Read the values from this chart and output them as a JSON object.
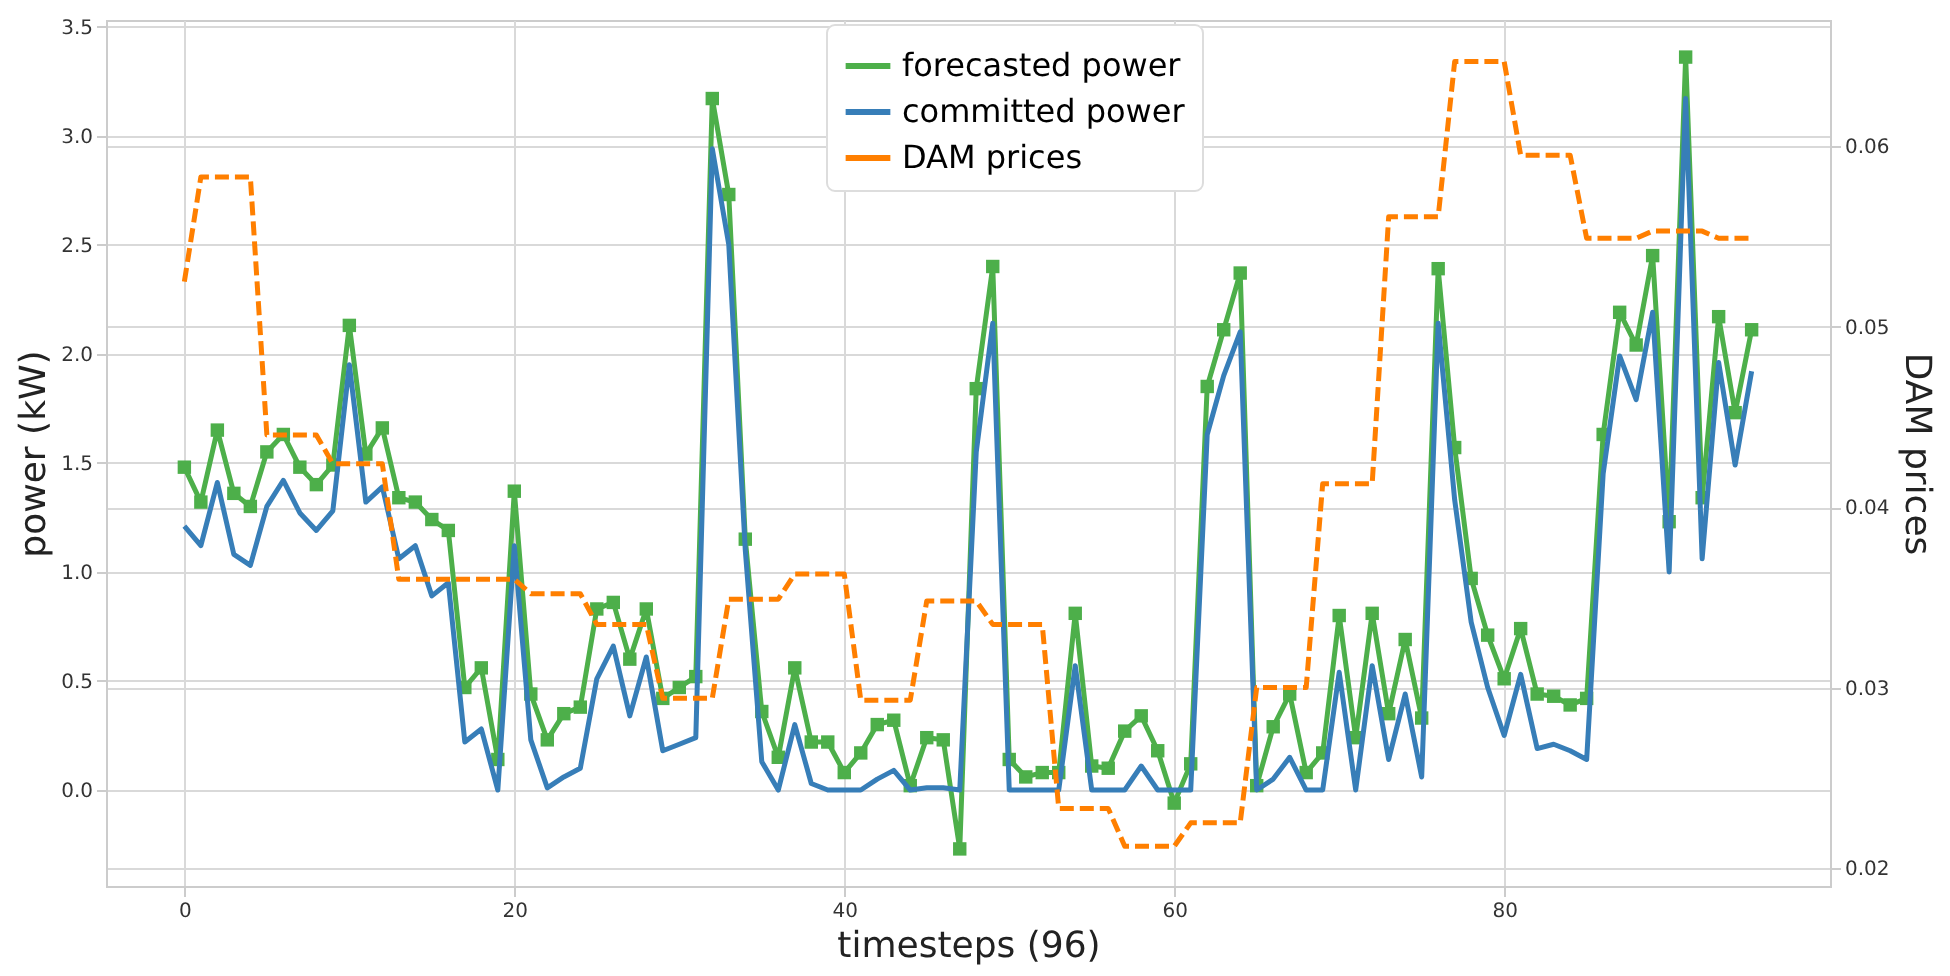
{
  "chart_data": {
    "type": "line",
    "xlabel": "timesteps (96)",
    "ylabel": "power (kW)",
    "y2label": "DAM prices",
    "x": [
      0,
      1,
      2,
      3,
      4,
      5,
      6,
      7,
      8,
      9,
      10,
      11,
      12,
      13,
      14,
      15,
      16,
      17,
      18,
      19,
      20,
      21,
      22,
      23,
      24,
      25,
      26,
      27,
      28,
      29,
      30,
      31,
      32,
      33,
      34,
      35,
      36,
      37,
      38,
      39,
      40,
      41,
      42,
      43,
      44,
      45,
      46,
      47,
      48,
      49,
      50,
      51,
      52,
      53,
      54,
      55,
      56,
      57,
      58,
      59,
      60,
      61,
      62,
      63,
      64,
      65,
      66,
      67,
      68,
      69,
      70,
      71,
      72,
      73,
      74,
      75,
      76,
      77,
      78,
      79,
      80,
      81,
      82,
      83,
      84,
      85,
      86,
      87,
      88,
      89,
      90,
      91,
      92,
      93,
      94,
      95
    ],
    "series": [
      {
        "name": "forecasted power",
        "color": "#4daf4a",
        "marker": "square",
        "line_style": "solid",
        "values": [
          1.48,
          1.32,
          1.65,
          1.36,
          1.3,
          1.55,
          1.63,
          1.48,
          1.4,
          1.49,
          2.13,
          1.54,
          1.66,
          1.34,
          1.32,
          1.24,
          1.19,
          0.47,
          0.56,
          0.14,
          1.37,
          0.44,
          0.23,
          0.35,
          0.38,
          0.83,
          0.86,
          0.6,
          0.83,
          0.42,
          0.47,
          0.52,
          3.17,
          2.73,
          1.15,
          0.36,
          0.15,
          0.56,
          0.22,
          0.22,
          0.08,
          0.17,
          0.3,
          0.32,
          0.02,
          0.24,
          0.23,
          -0.27,
          1.84,
          2.4,
          0.14,
          0.06,
          0.08,
          0.08,
          0.81,
          0.11,
          0.1,
          0.27,
          0.34,
          0.18,
          -0.06,
          0.12,
          1.85,
          2.11,
          2.37,
          0.02,
          0.29,
          0.44,
          0.08,
          0.17,
          0.8,
          0.24,
          0.81,
          0.35,
          0.69,
          0.33,
          2.39,
          1.57,
          0.97,
          0.71,
          0.51,
          0.74,
          0.44,
          0.43,
          0.39,
          0.42,
          1.63,
          2.19,
          2.04,
          2.45,
          1.23,
          3.36,
          1.34,
          2.17,
          1.73,
          2.11
        ]
      },
      {
        "name": "committed power",
        "color": "#377eb8",
        "marker": "none",
        "line_style": "solid",
        "values": [
          1.21,
          1.12,
          1.41,
          1.08,
          1.03,
          1.3,
          1.42,
          1.27,
          1.19,
          1.28,
          1.95,
          1.32,
          1.39,
          1.06,
          1.12,
          0.89,
          0.95,
          0.22,
          0.28,
          0.0,
          1.12,
          0.23,
          0.01,
          0.06,
          0.1,
          0.51,
          0.66,
          0.34,
          0.61,
          0.18,
          0.21,
          0.24,
          2.94,
          2.5,
          1.1,
          0.13,
          0.0,
          0.3,
          0.03,
          0.0,
          0.0,
          0.0,
          0.05,
          0.09,
          0.0,
          0.01,
          0.01,
          0.0,
          1.55,
          2.14,
          0.0,
          0.0,
          0.0,
          0.0,
          0.57,
          0.0,
          0.0,
          0.0,
          0.11,
          0.0,
          0.0,
          0.0,
          1.63,
          1.9,
          2.1,
          0.0,
          0.05,
          0.15,
          0.0,
          0.0,
          0.54,
          0.0,
          0.57,
          0.14,
          0.44,
          0.06,
          2.14,
          1.33,
          0.77,
          0.47,
          0.25,
          0.53,
          0.19,
          0.21,
          0.18,
          0.14,
          1.45,
          1.99,
          1.79,
          2.19,
          1.0,
          3.17,
          1.06,
          1.96,
          1.49,
          1.92
        ]
      },
      {
        "name": "DAM prices",
        "color": "#ff7f00",
        "marker": "none",
        "line_style": "dashed",
        "axis": "y2",
        "values": [
          0.0525,
          0.0583,
          0.0583,
          0.0583,
          0.0583,
          0.044,
          0.044,
          0.044,
          0.044,
          0.0424,
          0.0424,
          0.0424,
          0.0424,
          0.036,
          0.036,
          0.036,
          0.036,
          0.036,
          0.036,
          0.036,
          0.036,
          0.0352,
          0.0352,
          0.0352,
          0.0352,
          0.0335,
          0.0335,
          0.0335,
          0.0335,
          0.0294,
          0.0294,
          0.0294,
          0.0294,
          0.0349,
          0.0349,
          0.0349,
          0.0349,
          0.0363,
          0.0363,
          0.0363,
          0.0363,
          0.0293,
          0.0293,
          0.0293,
          0.0293,
          0.0348,
          0.0348,
          0.0348,
          0.0348,
          0.0335,
          0.0335,
          0.0335,
          0.0335,
          0.0233,
          0.0233,
          0.0233,
          0.0233,
          0.0212,
          0.0212,
          0.0212,
          0.0212,
          0.0225,
          0.0225,
          0.0225,
          0.0225,
          0.03,
          0.03,
          0.03,
          0.03,
          0.0413,
          0.0413,
          0.0413,
          0.0413,
          0.0561,
          0.0561,
          0.0561,
          0.0561,
          0.0647,
          0.0647,
          0.0647,
          0.0647,
          0.0595,
          0.0595,
          0.0595,
          0.0595,
          0.0549,
          0.0549,
          0.0549,
          0.0549,
          0.0553,
          0.0553,
          0.0553,
          0.0553,
          0.0549,
          0.0549,
          0.0549
        ]
      }
    ],
    "xlim": [
      -4.75,
      99.75
    ],
    "xticks": [
      0,
      20,
      40,
      60,
      80
    ],
    "ylim": [
      -0.44,
      3.53
    ],
    "yticks": [
      {
        "value": 0,
        "label": "0.0"
      },
      0.5,
      {
        "value": 1,
        "label": "1.0"
      },
      1.5,
      {
        "value": 2,
        "label": "2.0"
      },
      2.5,
      {
        "value": 3,
        "label": "3.0"
      },
      3.5
    ],
    "y2lim": [
      0.019,
      0.067
    ],
    "y2ticks": [
      0.02,
      0.03,
      0.04,
      0.05,
      0.06
    ],
    "grid": true,
    "legend": "top"
  }
}
